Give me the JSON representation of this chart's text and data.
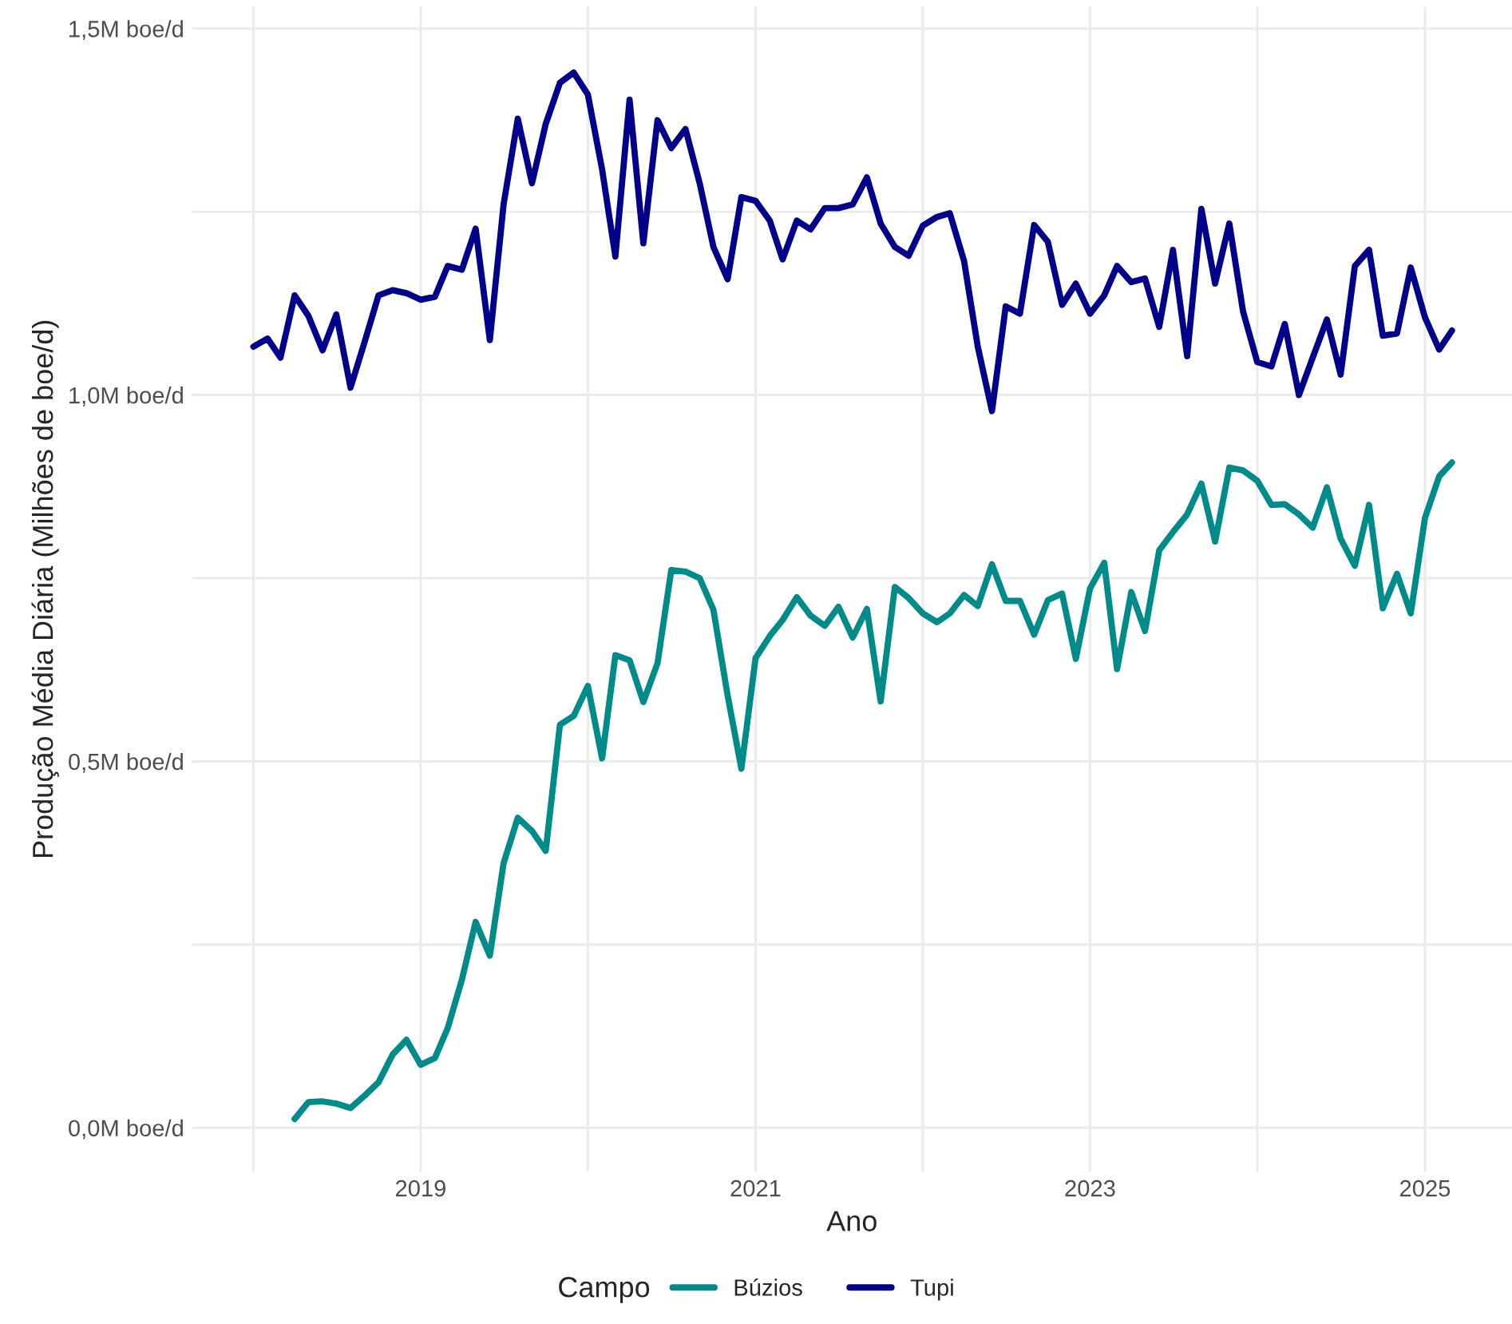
{
  "chart_data": {
    "type": "line",
    "xlabel": "Ano",
    "ylabel": "Produção Média Diária (Milhões de boe/d)",
    "legend_title": "Campo",
    "xlim": [
      "2017-08-20",
      "2025-07-10"
    ],
    "xticks": [
      {
        "value": "2018",
        "label": null
      },
      "2019",
      {
        "value": "2020",
        "label": null
      },
      "2021",
      {
        "value": "2022",
        "label": null
      },
      "2023",
      {
        "value": "2024",
        "label": null
      },
      "2025"
    ],
    "ylim": [
      -0.06,
      1.53
    ],
    "yticks": [
      {
        "value": 0,
        "label": "0,0M boe/d"
      },
      {
        "value": 0.25,
        "label": null
      },
      {
        "value": 0.5,
        "label": "0,5M boe/d"
      },
      {
        "value": 0.75,
        "label": null
      },
      {
        "value": 1.0,
        "label": "1,0M boe/d"
      },
      {
        "value": 1.25,
        "label": null
      },
      {
        "value": 1.5,
        "label": "1,5M boe/d"
      }
    ],
    "grid": true,
    "legend": "bottom",
    "marker": "none",
    "line_style": "solid",
    "series": [
      {
        "name": "Búzios",
        "color": "#008b8b",
        "x": [
          "2018-04",
          "2018-05",
          "2018-06",
          "2018-07",
          "2018-08",
          "2018-09",
          "2018-10",
          "2018-11",
          "2018-12",
          "2019-01",
          "2019-02",
          "2019-03",
          "2019-04",
          "2019-05",
          "2019-06",
          "2019-07",
          "2019-08",
          "2019-09",
          "2019-10",
          "2019-11",
          "2019-12",
          "2020-01",
          "2020-02",
          "2020-03",
          "2020-04",
          "2020-05",
          "2020-06",
          "2020-07",
          "2020-08",
          "2020-09",
          "2020-10",
          "2020-11",
          "2020-12",
          "2021-01",
          "2021-02",
          "2021-03",
          "2021-04",
          "2021-05",
          "2021-06",
          "2021-07",
          "2021-08",
          "2021-09",
          "2021-10",
          "2021-11",
          "2021-12",
          "2022-01",
          "2022-02",
          "2022-03",
          "2022-04",
          "2022-05",
          "2022-06",
          "2022-07",
          "2022-08",
          "2022-09",
          "2022-10",
          "2022-11",
          "2022-12",
          "2023-01",
          "2023-02",
          "2023-03",
          "2023-04",
          "2023-05",
          "2023-06",
          "2023-07",
          "2023-08",
          "2023-09",
          "2023-10",
          "2023-11",
          "2023-12",
          "2024-01",
          "2024-02",
          "2024-03",
          "2024-04",
          "2024-05",
          "2024-06",
          "2024-07",
          "2024-08",
          "2024-09",
          "2024-10",
          "2024-11",
          "2024-12",
          "2025-01",
          "2025-02",
          "2025-03"
        ],
        "values": [
          0.012,
          0.035,
          0.036,
          0.033,
          0.027,
          0.044,
          0.062,
          0.1,
          0.12,
          0.086,
          0.095,
          0.136,
          0.202,
          0.281,
          0.235,
          0.361,
          0.423,
          0.405,
          0.378,
          0.55,
          0.562,
          0.603,
          0.504,
          0.645,
          0.638,
          0.581,
          0.634,
          0.761,
          0.759,
          0.75,
          0.707,
          0.59,
          0.49,
          0.641,
          0.671,
          0.693,
          0.724,
          0.699,
          0.685,
          0.711,
          0.669,
          0.708,
          0.582,
          0.738,
          0.723,
          0.702,
          0.69,
          0.702,
          0.727,
          0.712,
          0.769,
          0.719,
          0.719,
          0.673,
          0.72,
          0.729,
          0.64,
          0.736,
          0.771,
          0.626,
          0.731,
          0.678,
          0.788,
          0.813,
          0.837,
          0.879,
          0.8,
          0.901,
          0.897,
          0.883,
          0.85,
          0.851,
          0.837,
          0.819,
          0.874,
          0.804,
          0.767,
          0.85,
          0.709,
          0.756,
          0.702,
          0.832,
          0.889,
          0.908
        ]
      },
      {
        "name": "Tupi",
        "color": "#00008b",
        "x": [
          "2018-01",
          "2018-02",
          "2018-03",
          "2018-04",
          "2018-05",
          "2018-06",
          "2018-07",
          "2018-08",
          "2018-09",
          "2018-10",
          "2018-11",
          "2018-12",
          "2019-01",
          "2019-02",
          "2019-03",
          "2019-04",
          "2019-05",
          "2019-06",
          "2019-07",
          "2019-08",
          "2019-09",
          "2019-10",
          "2019-11",
          "2019-12",
          "2020-01",
          "2020-02",
          "2020-03",
          "2020-04",
          "2020-05",
          "2020-06",
          "2020-07",
          "2020-08",
          "2020-09",
          "2020-10",
          "2020-11",
          "2020-12",
          "2021-01",
          "2021-02",
          "2021-03",
          "2021-04",
          "2021-05",
          "2021-06",
          "2021-07",
          "2021-08",
          "2021-09",
          "2021-10",
          "2021-11",
          "2021-12",
          "2022-01",
          "2022-02",
          "2022-03",
          "2022-04",
          "2022-05",
          "2022-06",
          "2022-07",
          "2022-08",
          "2022-09",
          "2022-10",
          "2022-11",
          "2022-12",
          "2023-01",
          "2023-02",
          "2023-03",
          "2023-04",
          "2023-05",
          "2023-06",
          "2023-07",
          "2023-08",
          "2023-09",
          "2023-10",
          "2023-11",
          "2023-12",
          "2024-01",
          "2024-02",
          "2024-03",
          "2024-04",
          "2024-05",
          "2024-06",
          "2024-07",
          "2024-08",
          "2024-09",
          "2024-10",
          "2024-11",
          "2024-12",
          "2025-01",
          "2025-02",
          "2025-03"
        ],
        "values": [
          1.066,
          1.077,
          1.051,
          1.136,
          1.108,
          1.061,
          1.11,
          1.01,
          1.073,
          1.136,
          1.143,
          1.139,
          1.13,
          1.134,
          1.176,
          1.171,
          1.227,
          1.075,
          1.26,
          1.377,
          1.289,
          1.37,
          1.426,
          1.44,
          1.41,
          1.308,
          1.189,
          1.403,
          1.207,
          1.375,
          1.337,
          1.363,
          1.289,
          1.202,
          1.158,
          1.27,
          1.265,
          1.238,
          1.185,
          1.238,
          1.226,
          1.255,
          1.255,
          1.26,
          1.297,
          1.234,
          1.202,
          1.19,
          1.231,
          1.243,
          1.248,
          1.183,
          1.066,
          0.978,
          1.121,
          1.111,
          1.232,
          1.209,
          1.123,
          1.152,
          1.111,
          1.136,
          1.176,
          1.154,
          1.159,
          1.093,
          1.198,
          1.053,
          1.254,
          1.152,
          1.234,
          1.114,
          1.045,
          1.039,
          1.097,
          1.0,
          1.051,
          1.103,
          1.028,
          1.176,
          1.198,
          1.081,
          1.084,
          1.174,
          1.106,
          1.062,
          1.088
        ]
      }
    ]
  }
}
